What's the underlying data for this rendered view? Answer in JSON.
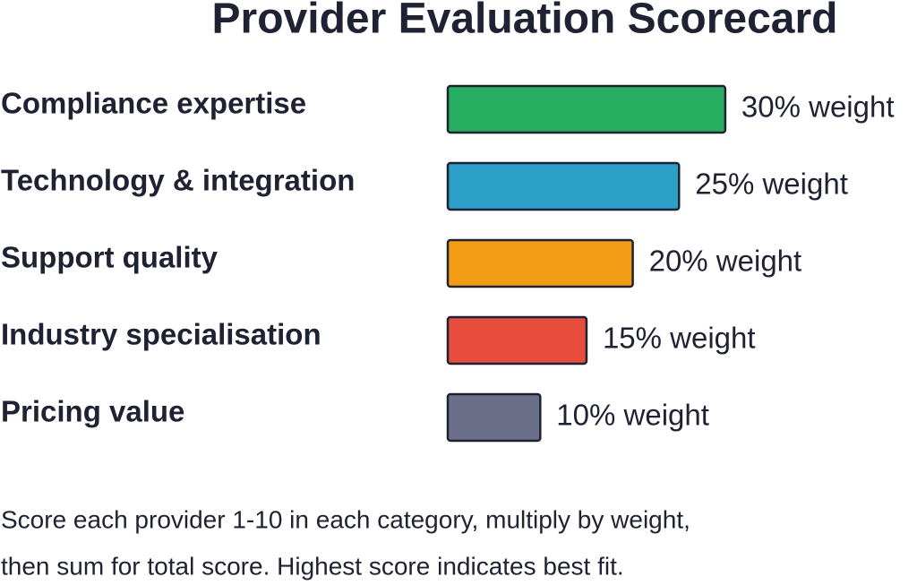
{
  "chart_data": {
    "type": "hbar",
    "title": "Provider Evaluation Scorecard",
    "categories": [
      "Compliance expertise",
      "Technology & integration",
      "Support quality",
      "Industry specialisation",
      "Pricing value"
    ],
    "values": [
      30,
      25,
      20,
      15,
      10
    ],
    "value_labels": [
      "30% weight",
      "25% weight",
      "20% weight",
      "15% weight",
      "10% weight"
    ],
    "colors": [
      "#27ae60",
      "#2a9fc8",
      "#f29c16",
      "#e74c3c",
      "#6b6f8a"
    ],
    "note_lines": [
      "Score each provider 1-10 in each category, multiply by weight,",
      "then sum for total score. Highest score indicates best fit."
    ]
  }
}
